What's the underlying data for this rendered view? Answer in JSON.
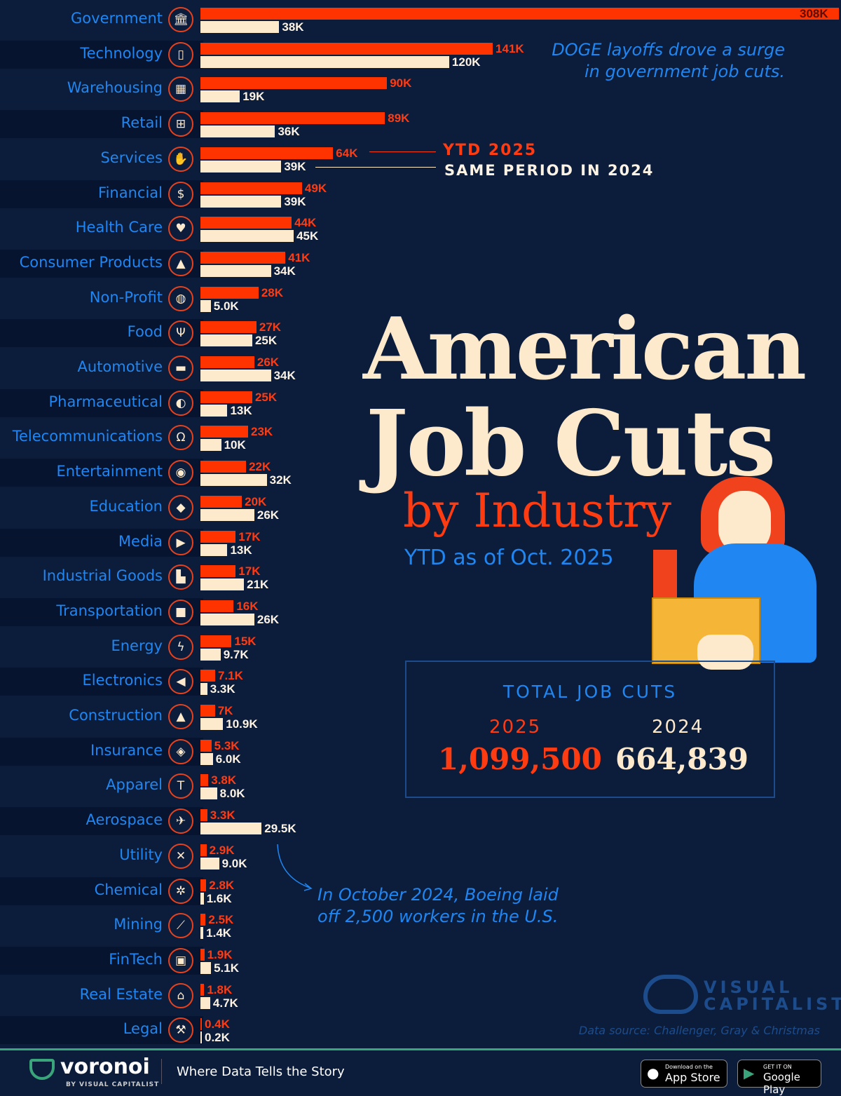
{
  "title": {
    "line1": "American",
    "line2": "Job Cuts",
    "line3": "by Industry",
    "subtitle": "YTD as of Oct. 2025"
  },
  "chart_data": {
    "type": "bar",
    "orientation": "horizontal",
    "categories": [
      "Government",
      "Technology",
      "Warehousing",
      "Retail",
      "Services",
      "Financial",
      "Health Care",
      "Consumer Products",
      "Non-Profit",
      "Food",
      "Automotive",
      "Pharmaceutical",
      "Telecommunications",
      "Entertainment",
      "Education",
      "Media",
      "Industrial Goods",
      "Transportation",
      "Energy",
      "Electronics",
      "Construction",
      "Insurance",
      "Apparel",
      "Aerospace",
      "Utility",
      "Chemical",
      "Mining",
      "FinTech",
      "Real Estate",
      "Legal"
    ],
    "icons": [
      "bank-icon",
      "phone-icon",
      "boxes-icon",
      "cart-icon",
      "hand-icon",
      "dollar-icon",
      "heart-plus-icon",
      "bag-icon",
      "globe-icon",
      "fork-knife-icon",
      "car-icon",
      "pill-icon",
      "headset-icon",
      "camera-icon",
      "graduation-cap-icon",
      "play-icon",
      "factory-icon",
      "truck-icon",
      "lightning-icon",
      "plug-icon",
      "hardhat-icon",
      "shield-icon",
      "tshirt-icon",
      "plane-icon",
      "tools-icon",
      "molecule-icon",
      "pickaxe-icon",
      "chip-icon",
      "house-icon",
      "gavel-icon"
    ],
    "series": [
      {
        "name": "YTD 2025",
        "color": "#ff3300",
        "values": [
          308,
          141,
          90,
          89,
          64,
          49,
          44,
          41,
          28,
          27,
          26,
          25,
          23,
          22,
          20,
          17,
          17,
          16,
          15,
          7.1,
          7,
          5.3,
          3.8,
          3.3,
          2.9,
          2.8,
          2.5,
          1.9,
          1.8,
          0.4
        ],
        "labels": [
          "308K",
          "141K",
          "90K",
          "89K",
          "64K",
          "49K",
          "44K",
          "41K",
          "28K",
          "27K",
          "26K",
          "25K",
          "23K",
          "22K",
          "20K",
          "17K",
          "17K",
          "16K",
          "15K",
          "7.1K",
          "7K",
          "5.3K",
          "3.8K",
          "3.3K",
          "2.9K",
          "2.8K",
          "2.5K",
          "1.9K",
          "1.8K",
          "0.4K"
        ]
      },
      {
        "name": "SAME PERIOD IN 2024",
        "color": "#fde9cc",
        "values": [
          38,
          120,
          19,
          36,
          39,
          39,
          45,
          34,
          5.0,
          25,
          34,
          13,
          10,
          32,
          26,
          13,
          21,
          26,
          9.7,
          3.3,
          10.9,
          6.0,
          8.0,
          29.5,
          9.0,
          1.6,
          1.4,
          5.1,
          4.7,
          0.2
        ],
        "labels": [
          "38K",
          "120K",
          "19K",
          "36K",
          "39K",
          "39K",
          "45K",
          "34K",
          "5.0K",
          "25K",
          "34K",
          "13K",
          "10K",
          "32K",
          "26K",
          "13K",
          "21K",
          "26K",
          "9.7K",
          "3.3K",
          "10.9K",
          "6.0K",
          "8.0K",
          "29.5K",
          "9.0K",
          "1.6K",
          "1.4K",
          "5.1K",
          "4.7K",
          "0.2K"
        ]
      }
    ],
    "unit": "thousands of job cuts"
  },
  "legend": {
    "ytd": "YTD 2025",
    "prev": "SAME PERIOD IN 2024"
  },
  "notes": {
    "doge_1": "DOGE layoffs drove a surge",
    "doge_2": "in government job cuts.",
    "boeing_1": "In October 2024, Boeing laid",
    "boeing_2": "off 2,500 workers in the U.S."
  },
  "totals": {
    "heading": "TOTAL JOB CUTS",
    "y1": "2025",
    "v1": "1,099,500",
    "y2": "2024",
    "v2": "664,839"
  },
  "brand": {
    "logo_1": "VISUAL",
    "logo_2": "CAPITALIST",
    "source": "Data source: Challenger, Gray & Christmas"
  },
  "footer": {
    "name": "voronoi",
    "by": "BY VISUAL CAPITALIST",
    "tagline": "Where Data Tells the Story",
    "appstore_small": "Download on the",
    "appstore": "App Store",
    "gplay_small": "GET IT ON",
    "gplay": "Google Play"
  }
}
